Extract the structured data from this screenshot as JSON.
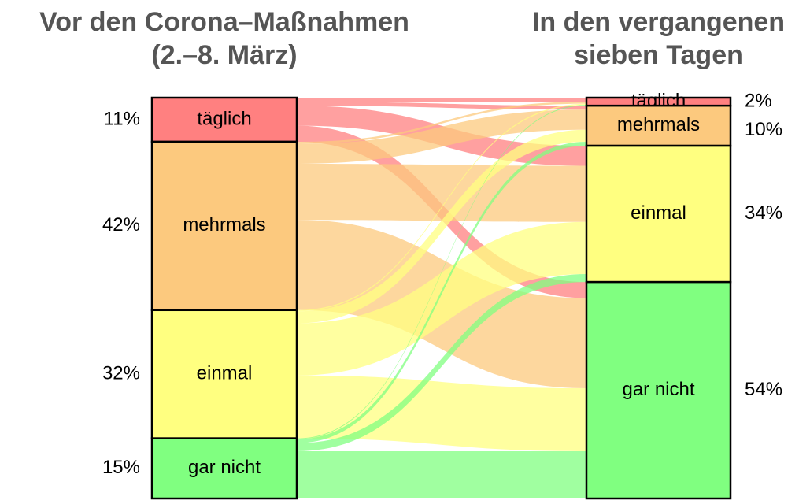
{
  "chart_data": {
    "type": "alluvial",
    "colors": [
      "#ff8080",
      "#fcc97e",
      "#ffff80",
      "#80ff80"
    ],
    "stages": [
      {
        "title": [
          "Vor den Corona–Maßnahmen",
          "(2.–8. März)"
        ],
        "categories": [
          "täglich",
          "mehrmals",
          "einmal",
          "gar nicht"
        ],
        "values": [
          11,
          42,
          32,
          15
        ],
        "value_labels": [
          "11%",
          "42%",
          "32%",
          "15%"
        ]
      },
      {
        "title": [
          "In den vergangenen",
          "sieben Tagen"
        ],
        "categories": [
          "täglich",
          "mehrmals",
          "einmal",
          "gar nicht"
        ],
        "values": [
          2,
          10,
          34,
          54
        ],
        "value_labels": [
          "2%",
          "10%",
          "34%",
          "54%"
        ]
      }
    ],
    "flows": [
      [
        1,
        1,
        5,
        4
      ],
      [
        0.5,
        5,
        14,
        22.5
      ],
      [
        0.3,
        3,
        13,
        15.7
      ],
      [
        0.2,
        1,
        2,
        11.8
      ]
    ]
  }
}
